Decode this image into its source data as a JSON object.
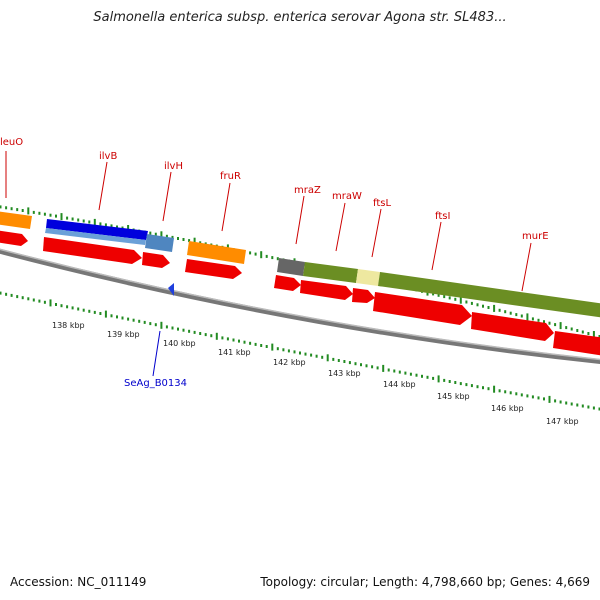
{
  "title": "Salmonella enterica subsp. enterica serovar Agona str. SL483...",
  "footer": {
    "accession": "Accession: NC_011149",
    "topology": "Topology: circular; Length: 4,798,660 bp; Genes: 4,669"
  },
  "colors": {
    "cds": "#ee0000",
    "orange": "#ff8c00",
    "dark_blue": "#0000dd",
    "steel_blue": "#4f86c0",
    "olive": "#6b8e23",
    "gray": "#666666",
    "pale_yellow": "#eee8a0",
    "tick_green": "#228b22",
    "backbone": "#888888"
  },
  "gene_labels": [
    {
      "name": "leuO"
    },
    {
      "name": "ilvB"
    },
    {
      "name": "ilvH"
    },
    {
      "name": "fruR"
    },
    {
      "name": "mraZ"
    },
    {
      "name": "mraW"
    },
    {
      "name": "ftsL"
    },
    {
      "name": "ftsI"
    },
    {
      "name": "murE"
    }
  ],
  "feature_label": "SeAg_B0134",
  "kbp_labels": [
    "138 kbp",
    "139 kbp",
    "140 kbp",
    "141 kbp",
    "142 kbp",
    "143 kbp",
    "144 kbp",
    "145 kbp",
    "146 kbp",
    "147 kbp"
  ]
}
